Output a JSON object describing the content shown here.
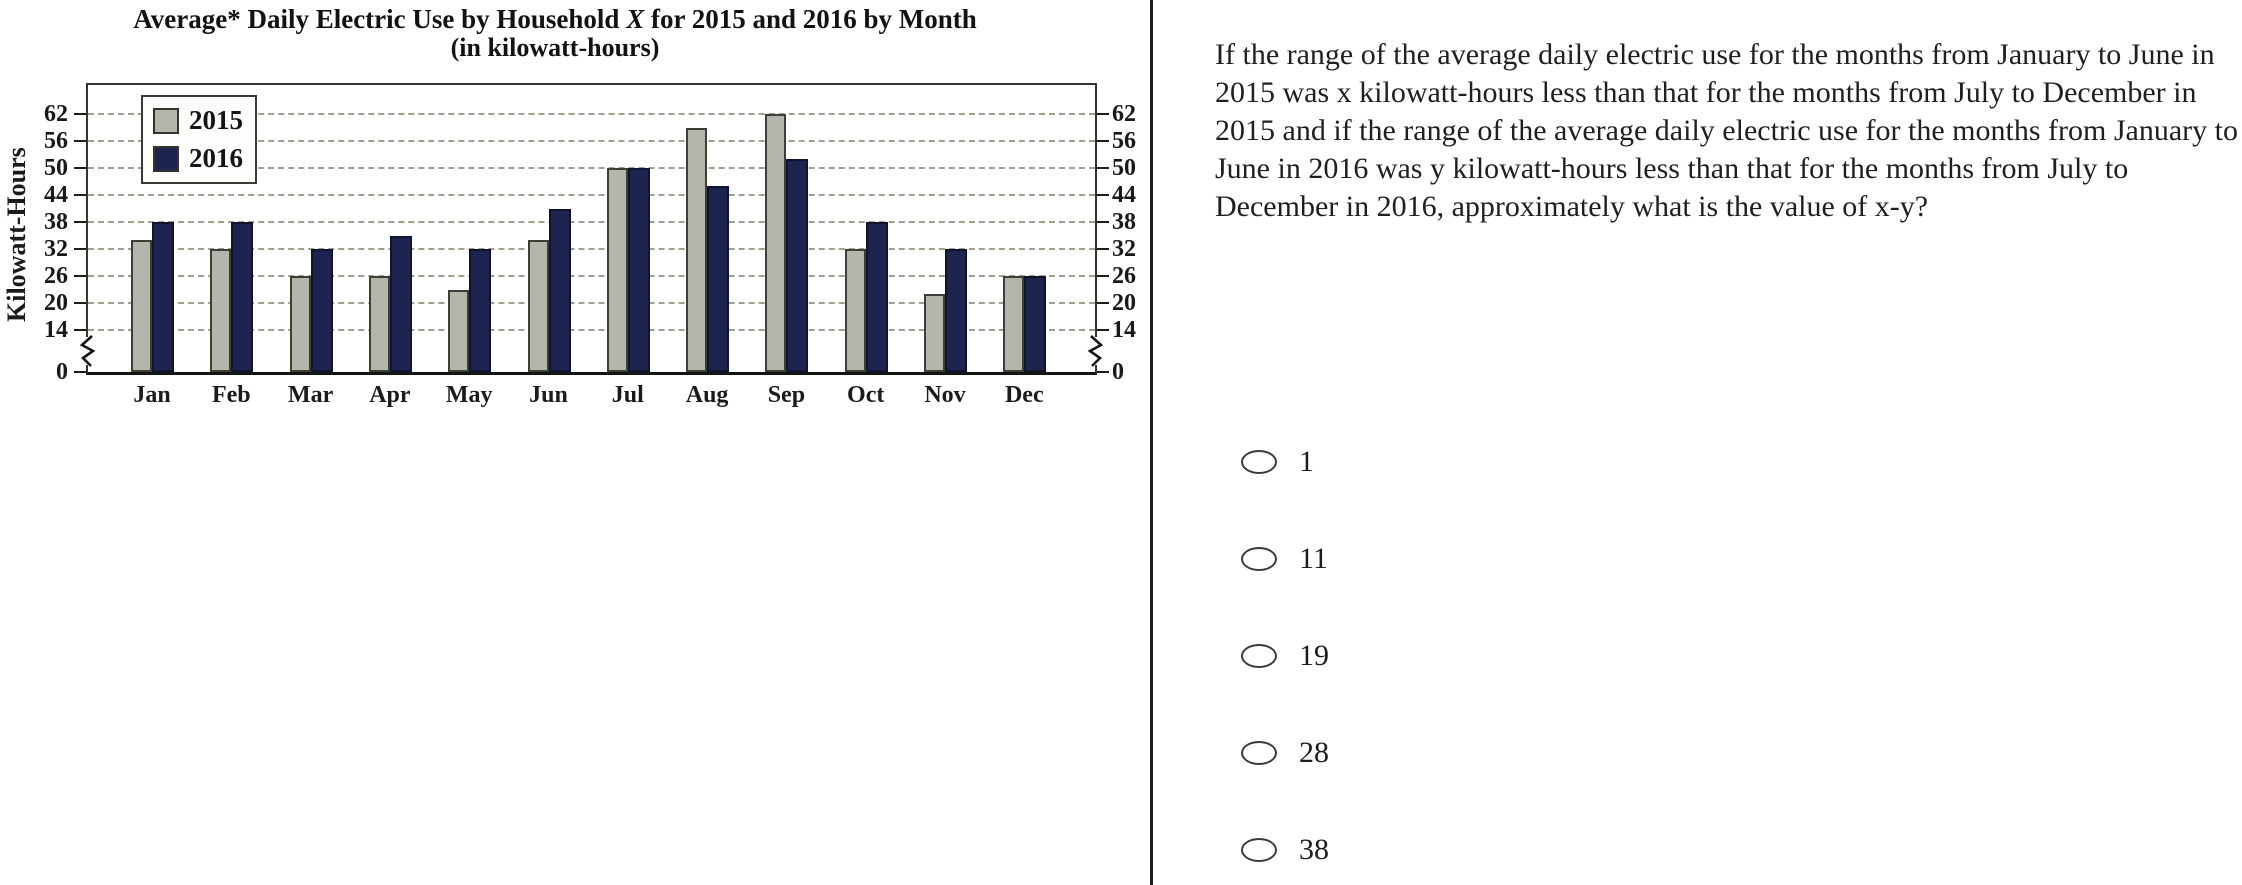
{
  "chart": {
    "title_part1": "Average* Daily Electric Use by Household ",
    "title_part2": "X",
    "title_part3": " for 2015 and 2016 by Month",
    "title_line2": "(in kilowatt-hours)",
    "y_axis_label": "Kilowatt-Hours"
  },
  "chart_data": {
    "type": "bar",
    "title": "Average* Daily Electric Use by Household X for 2015 and 2016 by Month (in kilowatt-hours)",
    "categories": [
      "Jan",
      "Feb",
      "Mar",
      "Apr",
      "May",
      "Jun",
      "Jul",
      "Aug",
      "Sep",
      "Oct",
      "Nov",
      "Dec"
    ],
    "series": [
      {
        "name": "2015",
        "color": "#b6b5ab",
        "values": [
          34,
          32,
          26,
          26,
          23,
          34,
          50,
          59,
          62,
          32,
          22,
          26
        ]
      },
      {
        "name": "2016",
        "color": "#1e2450",
        "values": [
          38,
          38,
          32,
          35,
          32,
          41,
          50,
          46,
          52,
          38,
          32,
          26
        ]
      }
    ],
    "xlabel": "",
    "ylabel": "Kilowatt-Hours",
    "yticks": [
      0,
      14,
      20,
      26,
      32,
      38,
      44,
      50,
      56,
      62
    ],
    "ylim": [
      0,
      66
    ],
    "axis_break": "zigzag break between 0 and 14 on both left and right axes",
    "grid": "horizontal dashed gridlines at each labeled tick",
    "legend_position": "top-left inside plot",
    "colors": {
      "axis": "#1c1c1c",
      "grid": "#a19d8f",
      "bar_2015": "#b6b5ab",
      "bar_2016": "#1e2450",
      "divider": "#1d1d1d"
    }
  },
  "question": {
    "text": "If the range of the average daily electric use for the months from January to June in 2015 was x kilowatt-hours less than that for the months from July to December in 2015 and if the range of the average daily electric use for the months from January to June in 2016 was y kilowatt-hours less than that for the months from July to December in 2016, approximately what is the value of x-y?",
    "options": [
      "1",
      "11",
      "19",
      "28",
      "38"
    ]
  }
}
